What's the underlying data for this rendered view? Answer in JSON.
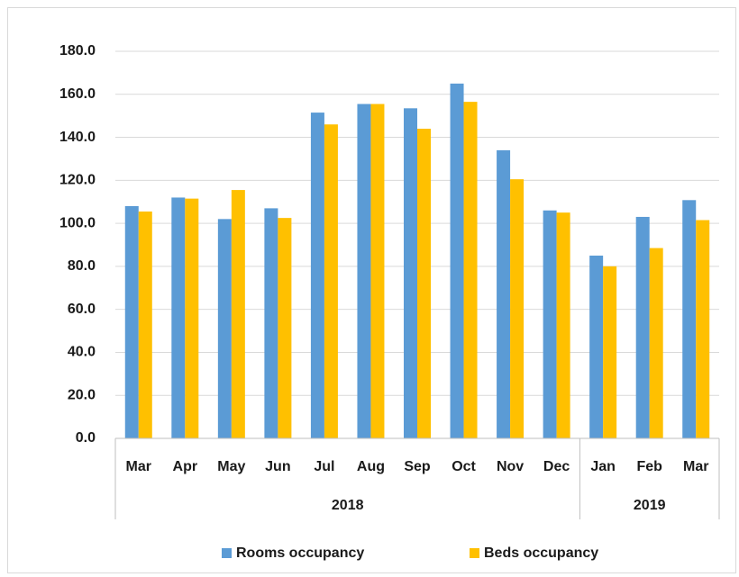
{
  "chart_data": {
    "type": "bar",
    "categories": [
      "Mar",
      "Apr",
      "May",
      "Jun",
      "Jul",
      "Aug",
      "Sep",
      "Oct",
      "Nov",
      "Dec",
      "Jan",
      "Feb",
      "Mar"
    ],
    "groups": [
      {
        "label": "2018",
        "count": 10
      },
      {
        "label": "2019",
        "count": 3
      }
    ],
    "series": [
      {
        "name": "Rooms occupancy",
        "color": "#5b9bd5",
        "values": [
          108,
          112,
          102,
          107,
          151.5,
          155.5,
          153.5,
          165,
          134,
          106,
          85,
          103,
          110.8
        ]
      },
      {
        "name": "Beds occupancy",
        "color": "#ffc000",
        "values": [
          105.5,
          111.5,
          115.5,
          102.5,
          146,
          155.5,
          144,
          156.5,
          120.5,
          105,
          80,
          88.5,
          101.5
        ]
      }
    ],
    "ylim": [
      0,
      180
    ],
    "yticks": [
      {
        "value": 0,
        "label": "0.0"
      },
      {
        "value": 20,
        "label": "20.0"
      },
      {
        "value": 40,
        "label": "40.0"
      },
      {
        "value": 60,
        "label": "60.0"
      },
      {
        "value": 80,
        "label": "80.0"
      },
      {
        "value": 100,
        "label": "100.0"
      },
      {
        "value": 120,
        "label": "120.0"
      },
      {
        "value": 140,
        "label": "140.0"
      },
      {
        "value": 160,
        "label": "160.0"
      },
      {
        "value": 180,
        "label": "180.0"
      }
    ],
    "grid": true,
    "legend": "bottom"
  }
}
